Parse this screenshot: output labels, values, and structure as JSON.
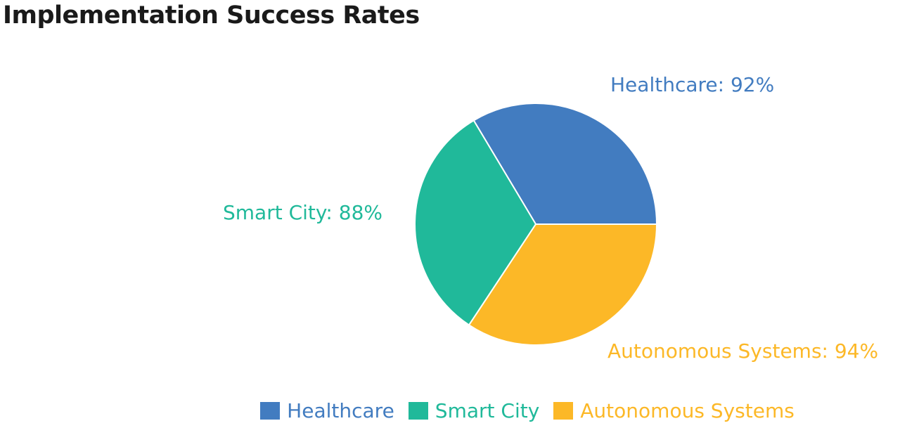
{
  "chart_data": {
    "type": "pie",
    "title": "Implementation Success Rates",
    "slices": [
      {
        "name": "Healthcare",
        "value": 92,
        "label": "Healthcare: 92%",
        "color": "#427cc0"
      },
      {
        "name": "Smart City",
        "value": 88,
        "label": "Smart City: 88%",
        "color": "#20b99a"
      },
      {
        "name": "Autonomous Systems",
        "value": 94,
        "label": "Autonomous Systems: 94%",
        "color": "#fcb827"
      }
    ],
    "legend": {
      "placement": "bottom",
      "entries": [
        "Healthcare",
        "Smart City",
        "Autonomous Systems"
      ]
    }
  }
}
